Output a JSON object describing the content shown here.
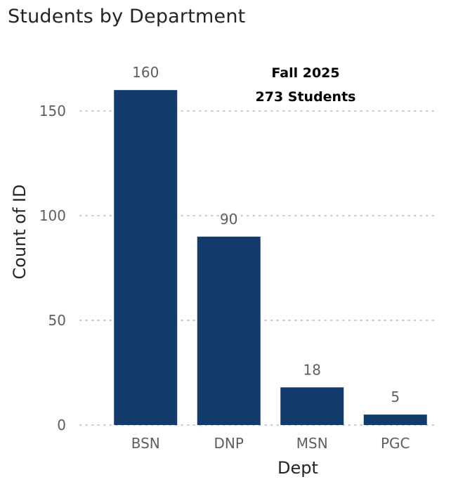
{
  "chart_data": {
    "type": "bar",
    "title": "Students by Department",
    "xlabel": "Dept",
    "ylabel": "Count of ID",
    "categories": [
      "BSN",
      "DNP",
      "MSN",
      "PGC"
    ],
    "values": [
      160,
      90,
      18,
      5
    ],
    "data_labels": [
      "160",
      "90",
      "18",
      "5"
    ],
    "ylim": [
      0,
      160
    ],
    "yticks": [
      0,
      50,
      100,
      150
    ],
    "grid": true,
    "grid_style": "dotted",
    "legend": "none",
    "annotation": {
      "line1": "Fall 2025",
      "line2": "273 Students"
    },
    "colors": {
      "bar": "#123a6b",
      "grid": "#c8c6c4",
      "tick_text": "#605e5c",
      "title_text": "#252423",
      "annotation_text": "#000000"
    }
  }
}
